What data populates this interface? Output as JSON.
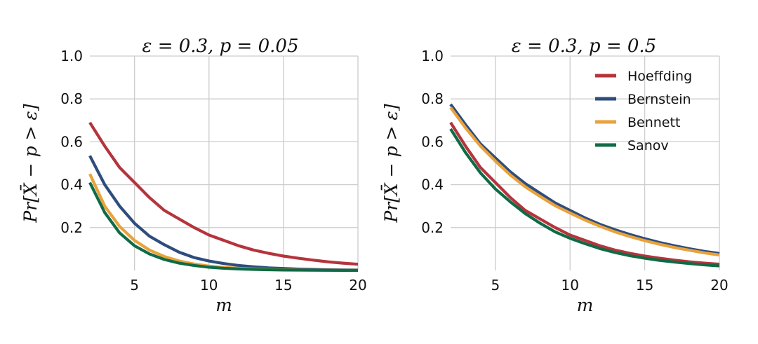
{
  "chart_data": [
    {
      "type": "line",
      "title": "ε = 0.3, p = 0.05",
      "xlabel": "m",
      "ylabel": "Pr[X̄ − p > ε]",
      "xlim": [
        2,
        20
      ],
      "ylim": [
        0,
        1.0
      ],
      "xticks": [
        5,
        10,
        15,
        20
      ],
      "yticks": [
        0.2,
        0.4,
        0.6,
        0.8,
        1.0
      ],
      "x": [
        2,
        3,
        4,
        5,
        6,
        7,
        8,
        9,
        10,
        11,
        12,
        13,
        14,
        15,
        16,
        17,
        18,
        19,
        20
      ],
      "grid": true,
      "legend": false,
      "series": [
        {
          "name": "Hoeffding",
          "color": "#b5343c",
          "values": [
            0.69,
            0.58,
            0.48,
            0.41,
            0.34,
            0.28,
            0.24,
            0.2,
            0.165,
            0.14,
            0.115,
            0.095,
            0.08,
            0.067,
            0.057,
            0.048,
            0.04,
            0.034,
            0.029
          ]
        },
        {
          "name": "Bernstein",
          "color": "#2e4d7d",
          "values": [
            0.535,
            0.4,
            0.3,
            0.22,
            0.16,
            0.12,
            0.085,
            0.06,
            0.044,
            0.032,
            0.023,
            0.017,
            0.012,
            0.009,
            0.006,
            0.0045,
            0.003,
            0.002,
            0.0015
          ]
        },
        {
          "name": "Bennett",
          "color": "#e9a23b",
          "values": [
            0.45,
            0.3,
            0.205,
            0.14,
            0.095,
            0.065,
            0.044,
            0.03,
            0.02,
            0.014,
            0.01,
            0.007,
            0.005,
            0.003,
            0.002,
            0.0015,
            0.001,
            0.0007,
            0.0005
          ]
        },
        {
          "name": "Sanov",
          "color": "#0f6b45",
          "values": [
            0.41,
            0.27,
            0.175,
            0.115,
            0.077,
            0.051,
            0.034,
            0.023,
            0.015,
            0.01,
            0.007,
            0.005,
            0.003,
            0.002,
            0.0014,
            0.001,
            0.0006,
            0.0004,
            0.0003
          ]
        }
      ]
    },
    {
      "type": "line",
      "title": "ε = 0.3, p = 0.5",
      "xlabel": "m",
      "ylabel": "Pr[X̄ − p > ε]",
      "xlim": [
        2,
        20
      ],
      "ylim": [
        0,
        1.0
      ],
      "xticks": [
        5,
        10,
        15,
        20
      ],
      "yticks": [
        0.2,
        0.4,
        0.6,
        0.8,
        1.0
      ],
      "x": [
        2,
        3,
        4,
        5,
        6,
        7,
        8,
        9,
        10,
        11,
        12,
        13,
        14,
        15,
        16,
        17,
        18,
        19,
        20
      ],
      "grid": true,
      "legend": "top-right",
      "series": [
        {
          "name": "Hoeffding",
          "color": "#b5343c",
          "values": [
            0.69,
            0.58,
            0.48,
            0.41,
            0.34,
            0.28,
            0.24,
            0.2,
            0.165,
            0.14,
            0.115,
            0.095,
            0.08,
            0.067,
            0.057,
            0.048,
            0.04,
            0.034,
            0.029
          ]
        },
        {
          "name": "Bernstein",
          "color": "#2e4d7d",
          "values": [
            0.775,
            0.68,
            0.59,
            0.525,
            0.46,
            0.405,
            0.36,
            0.315,
            0.28,
            0.245,
            0.215,
            0.19,
            0.168,
            0.148,
            0.13,
            0.115,
            0.101,
            0.089,
            0.079
          ]
        },
        {
          "name": "Bennett",
          "color": "#e9a23b",
          "values": [
            0.76,
            0.665,
            0.58,
            0.51,
            0.445,
            0.39,
            0.345,
            0.302,
            0.268,
            0.235,
            0.206,
            0.18,
            0.158,
            0.139,
            0.122,
            0.107,
            0.094,
            0.082,
            0.072
          ]
        },
        {
          "name": "Sanov",
          "color": "#0f6b45",
          "values": [
            0.66,
            0.55,
            0.455,
            0.38,
            0.32,
            0.265,
            0.22,
            0.18,
            0.15,
            0.125,
            0.102,
            0.084,
            0.069,
            0.057,
            0.047,
            0.039,
            0.032,
            0.026,
            0.021
          ]
        }
      ]
    }
  ]
}
